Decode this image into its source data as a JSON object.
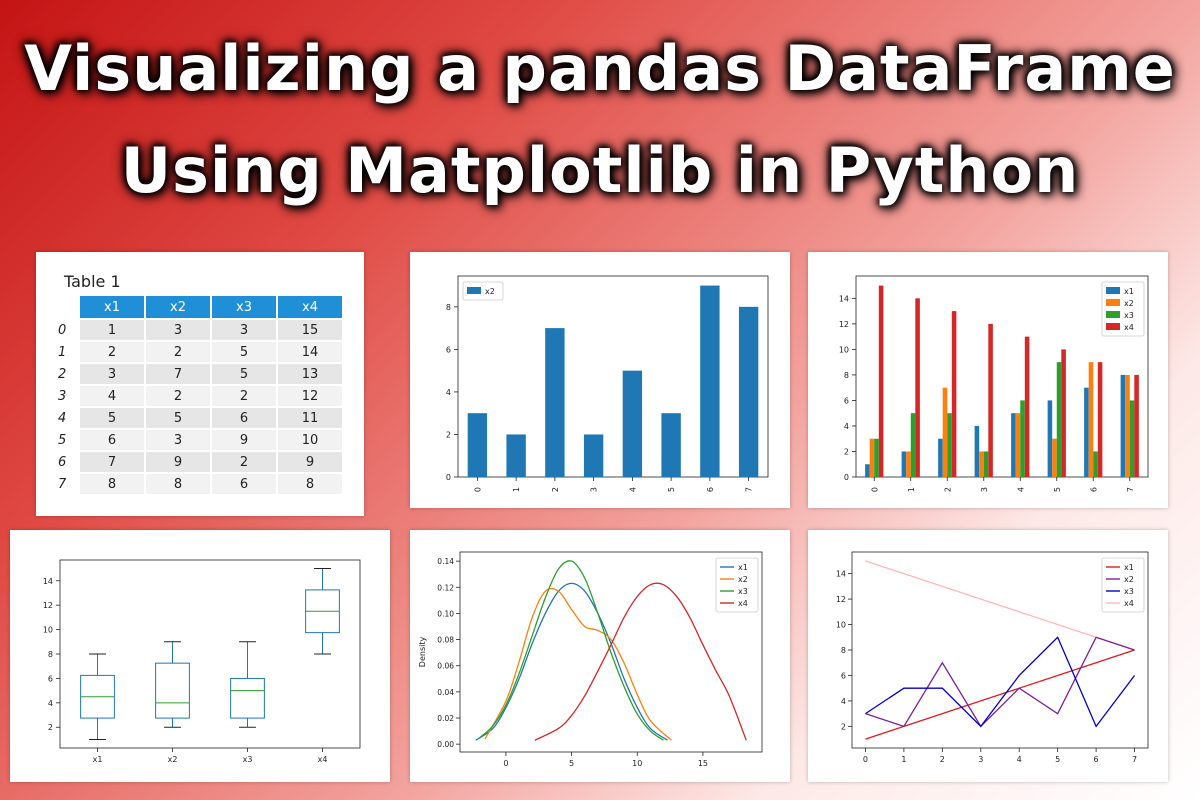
{
  "headline": {
    "line1": "Visualizing a pandas DataFrame",
    "line2": "Using Matplotlib in Python"
  },
  "colors": {
    "x1": "#1f77b4",
    "x2": "#ff7f0e",
    "x3": "#2ca02c",
    "x4": "#d62728",
    "table_header": "#1f8fd8",
    "line_x1": "#e41a1c",
    "line_x2": "#7b1fa2",
    "line_x3": "#0000cc",
    "line_x4": "#ffb6c1"
  },
  "chart_data": [
    {
      "type": "table",
      "title": "Table 1",
      "columns": [
        "x1",
        "x2",
        "x3",
        "x4"
      ],
      "index": [
        "0",
        "1",
        "2",
        "3",
        "4",
        "5",
        "6",
        "7"
      ],
      "rows": [
        [
          1,
          3,
          3,
          15
        ],
        [
          2,
          2,
          5,
          14
        ],
        [
          3,
          7,
          5,
          13
        ],
        [
          4,
          2,
          2,
          12
        ],
        [
          5,
          5,
          6,
          11
        ],
        [
          6,
          3,
          9,
          10
        ],
        [
          7,
          9,
          2,
          9
        ],
        [
          8,
          8,
          6,
          8
        ]
      ]
    },
    {
      "type": "bar",
      "categories": [
        "0",
        "1",
        "2",
        "3",
        "4",
        "5",
        "6",
        "7"
      ],
      "series": [
        {
          "name": "x2",
          "values": [
            3,
            2,
            7,
            2,
            5,
            3,
            9,
            8
          ]
        }
      ],
      "ylim": [
        0,
        9.45
      ],
      "yticks": [
        "0",
        "2",
        "4",
        "6",
        "8"
      ],
      "legend": "top-left"
    },
    {
      "type": "bar",
      "categories": [
        "0",
        "1",
        "2",
        "3",
        "4",
        "5",
        "6",
        "7"
      ],
      "series": [
        {
          "name": "x1",
          "values": [
            1,
            2,
            3,
            4,
            5,
            6,
            7,
            8
          ]
        },
        {
          "name": "x2",
          "values": [
            3,
            2,
            7,
            2,
            5,
            3,
            9,
            8
          ]
        },
        {
          "name": "x3",
          "values": [
            3,
            5,
            5,
            2,
            6,
            9,
            2,
            6
          ]
        },
        {
          "name": "x4",
          "values": [
            15,
            14,
            13,
            12,
            11,
            10,
            9,
            8
          ]
        }
      ],
      "ylim": [
        0,
        15.75
      ],
      "yticks": [
        "0",
        "2",
        "4",
        "6",
        "8",
        "10",
        "12",
        "14"
      ],
      "legend": "top-right"
    },
    {
      "type": "box",
      "categories": [
        "x1",
        "x2",
        "x3",
        "x4"
      ],
      "boxes": [
        {
          "whislo": 1,
          "q1": 2.75,
          "med": 4.5,
          "q3": 6.25,
          "whishi": 8
        },
        {
          "whislo": 2,
          "q1": 2.75,
          "med": 4,
          "q3": 7.25,
          "whishi": 9
        },
        {
          "whislo": 2,
          "q1": 2.75,
          "med": 5,
          "q3": 6,
          "whishi": 9
        },
        {
          "whislo": 8,
          "q1": 9.75,
          "med": 11.5,
          "q3": 13.25,
          "whishi": 15
        }
      ],
      "ylim": [
        0.3,
        15.7
      ],
      "yticks": [
        "2",
        "4",
        "6",
        "8",
        "10",
        "12",
        "14"
      ]
    },
    {
      "type": "line",
      "ylabel": "Density",
      "series": [
        {
          "name": "x1",
          "x": [
            -2.3,
            -1,
            0,
            1,
            2,
            3,
            4,
            5,
            6,
            7,
            8,
            9,
            10,
            11,
            12.3
          ],
          "y": [
            0.003,
            0.012,
            0.028,
            0.05,
            0.077,
            0.1,
            0.117,
            0.123,
            0.117,
            0.1,
            0.077,
            0.05,
            0.028,
            0.012,
            0.003
          ]
        },
        {
          "name": "x2",
          "x": [
            -1.6,
            0,
            1,
            2,
            3,
            4,
            5,
            6,
            7,
            8,
            9,
            10,
            11,
            12.6
          ],
          "y": [
            0.004,
            0.033,
            0.063,
            0.097,
            0.117,
            0.117,
            0.103,
            0.09,
            0.087,
            0.08,
            0.062,
            0.038,
            0.018,
            0.003
          ]
        },
        {
          "name": "x3",
          "x": [
            -2,
            -1,
            0,
            1,
            2,
            3,
            4,
            5,
            6,
            7,
            8,
            9,
            10,
            11,
            12
          ],
          "y": [
            0.005,
            0.014,
            0.03,
            0.054,
            0.083,
            0.112,
            0.134,
            0.14,
            0.127,
            0.1,
            0.07,
            0.044,
            0.023,
            0.01,
            0.003
          ]
        },
        {
          "name": "x4",
          "x": [
            2.2,
            4,
            5,
            6,
            7,
            8,
            9,
            10,
            11,
            12,
            13,
            14,
            15,
            16,
            17,
            18.3
          ],
          "y": [
            0.003,
            0.012,
            0.022,
            0.037,
            0.056,
            0.076,
            0.097,
            0.113,
            0.122,
            0.122,
            0.113,
            0.097,
            0.076,
            0.056,
            0.037,
            0.003
          ]
        }
      ],
      "xlim": [
        -3.5,
        19.5
      ],
      "ylim": [
        -0.006,
        0.147
      ],
      "xticks": [
        "0",
        "5",
        "10",
        "15"
      ],
      "yticks": [
        "0.00",
        "0.02",
        "0.04",
        "0.06",
        "0.08",
        "0.10",
        "0.12",
        "0.14"
      ],
      "legend": "top-right"
    },
    {
      "type": "line",
      "x": [
        0,
        1,
        2,
        3,
        4,
        5,
        6,
        7
      ],
      "series": [
        {
          "name": "x1",
          "values": [
            1,
            2,
            3,
            4,
            5,
            6,
            7,
            8
          ]
        },
        {
          "name": "x2",
          "values": [
            3,
            2,
            7,
            2,
            5,
            3,
            9,
            8
          ]
        },
        {
          "name": "x3",
          "values": [
            3,
            5,
            5,
            2,
            6,
            9,
            2,
            6
          ]
        },
        {
          "name": "x4",
          "values": [
            15,
            14,
            13,
            12,
            11,
            10,
            9,
            8
          ]
        }
      ],
      "xlim": [
        -0.35,
        7.35
      ],
      "ylim": [
        0.3,
        15.7
      ],
      "xticks": [
        "0",
        "1",
        "2",
        "3",
        "4",
        "5",
        "6",
        "7"
      ],
      "yticks": [
        "2",
        "4",
        "6",
        "8",
        "10",
        "12",
        "14"
      ],
      "legend": "top-right"
    }
  ]
}
